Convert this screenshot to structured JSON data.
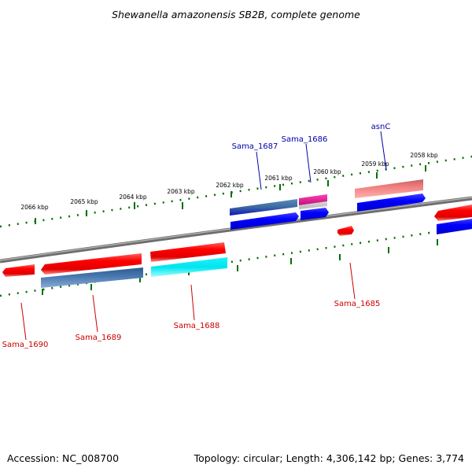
{
  "title": "Shewanella amazonensis SB2B, complete genome",
  "footer": {
    "accession": "Accession: NC_008700",
    "topology": "Topology: circular; Length: 4,306,142 bp; Genes: 3,774"
  },
  "scale_labels": [
    "2066 kbp",
    "2065 kbp",
    "2064 kbp",
    "2063 kbp",
    "2062 kbp",
    "2061 kbp",
    "2060 kbp",
    "2059 kbp",
    "2058 kbp"
  ],
  "gene_labels_top": [
    "Sama_1687",
    "Sama_1686",
    "asnC"
  ],
  "gene_labels_bottom": [
    "Sama_1690",
    "Sama_1689",
    "Sama_1688",
    "Sama_1685"
  ],
  "colors": {
    "forward_gene": "#ff0000",
    "reverse_gene": "#0000ff",
    "steelblue_gene": "#4a7ab0",
    "cyan_gene": "#00e5ee",
    "pink_gene": "#f08080",
    "magenta_gene": "#e0208a",
    "backbone": "#808080",
    "tick": "#007000",
    "label_top": "#0000aa",
    "label_bottom": "#cc0000"
  }
}
